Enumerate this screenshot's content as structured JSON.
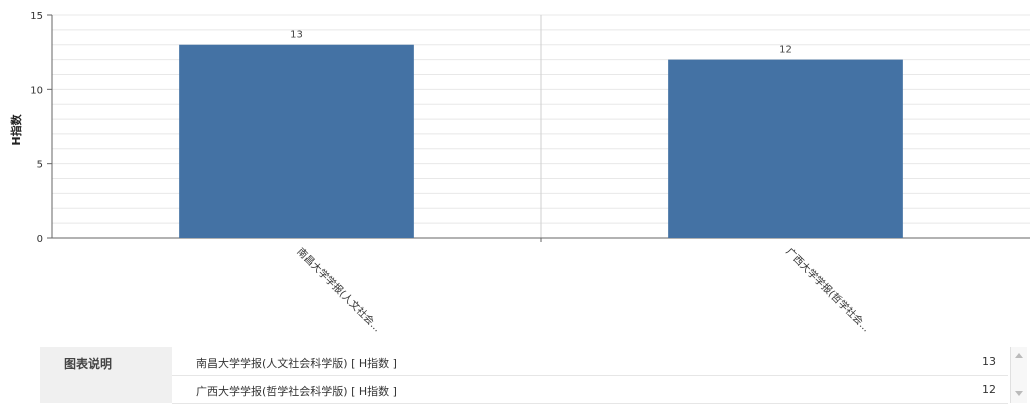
{
  "chart_data": {
    "type": "bar",
    "categories": [
      "南昌大学学报(人文社会...",
      "广西大学学报(哲学社会..."
    ],
    "values": [
      13,
      12
    ],
    "ylabel": "H指数",
    "ylim": [
      0,
      15
    ],
    "yticks": [
      0,
      5,
      10,
      15
    ],
    "bar_color": "#4472a4",
    "grid": true
  },
  "legend": {
    "title": "图表说明",
    "rows": [
      {
        "name": "南昌大学学报(人文社会科学版) [ H指数 ]",
        "value": "13"
      },
      {
        "name": "广西大学学报(哲学社会科学版) [ H指数 ]",
        "value": "12"
      }
    ]
  }
}
